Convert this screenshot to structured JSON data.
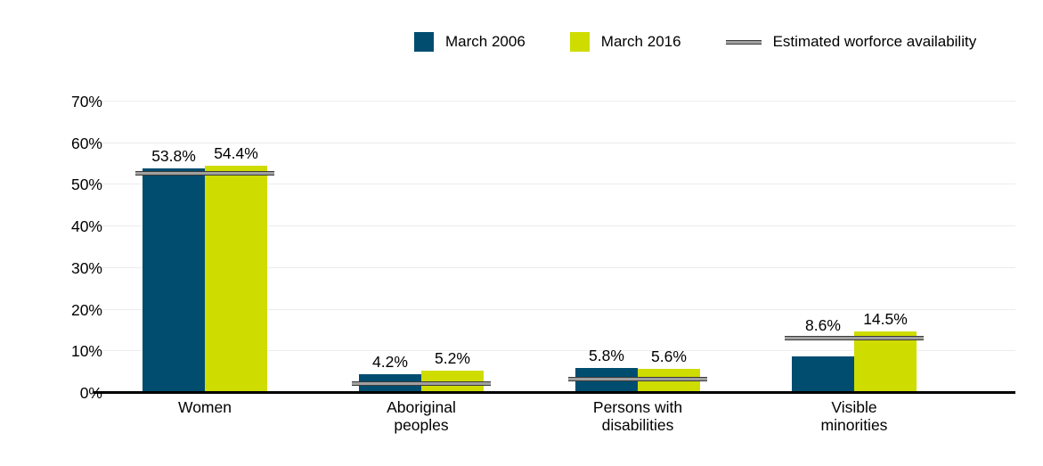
{
  "chart_data": {
    "type": "bar",
    "title": "",
    "categories": [
      "Women",
      "Aboriginal peoples",
      "Persons with disabilities",
      "Visible minorities"
    ],
    "series": [
      {
        "name": "March 2006",
        "color": "#004d70",
        "values": [
          53.8,
          4.2,
          5.8,
          8.6
        ],
        "labels": [
          "53.8%",
          "4.2%",
          "5.8%",
          "8.6%"
        ]
      },
      {
        "name": "March 2016",
        "color": "#cedc00",
        "values": [
          54.4,
          5.2,
          5.6,
          14.5
        ],
        "labels": [
          "54.4%",
          "5.2%",
          "5.6%",
          "14.5%"
        ]
      }
    ],
    "reference_line": {
      "name": "Estimated worforce availability",
      "values": [
        52.5,
        2.0,
        3.0,
        13.0
      ],
      "color": "#a0a0a0",
      "edge_color": "#3a3a3a"
    },
    "xlabel": "",
    "ylabel": "",
    "ylim": [
      0,
      70
    ],
    "yticks": [
      "0%",
      "10%",
      "20%",
      "30%",
      "40%",
      "50%",
      "60%",
      "70%"
    ],
    "grid": true,
    "gridline_color": "#ececec",
    "axis_color": "#000000",
    "legend_position": "top"
  }
}
